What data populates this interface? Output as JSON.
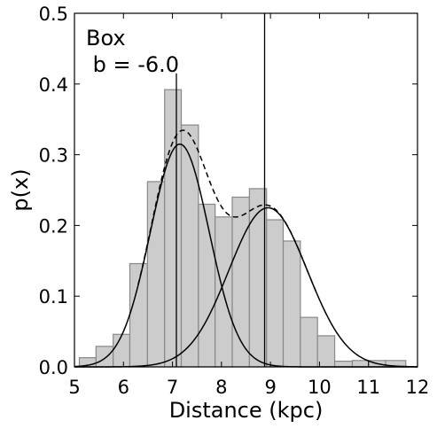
{
  "chart_data": {
    "type": "bar",
    "xlabel": "Distance (kpc)",
    "ylabel": "p(x)",
    "xlim": [
      5,
      12
    ],
    "ylim": [
      0,
      0.5
    ],
    "xticks": [
      "5",
      "6",
      "7",
      "8",
      "9",
      "10",
      "11",
      "12"
    ],
    "yticks": [
      "0.0",
      "0.1",
      "0.2",
      "0.3",
      "0.4",
      "0.5"
    ],
    "annotation": {
      "line1": "Box",
      "line2": " b = -6.0"
    },
    "histogram": {
      "bin_edges": [
        5.1,
        5.44,
        5.79,
        6.13,
        6.49,
        6.84,
        7.18,
        7.53,
        7.87,
        8.22,
        8.57,
        8.92,
        9.26,
        9.61,
        9.96,
        10.31,
        10.67,
        11.0,
        11.35,
        11.76
      ],
      "values": [
        0.013,
        0.029,
        0.046,
        0.146,
        0.262,
        0.392,
        0.342,
        0.23,
        0.212,
        0.24,
        0.252,
        0.208,
        0.178,
        0.07,
        0.044,
        0.008,
        0.009,
        0.009,
        0.009
      ]
    },
    "components": [
      {
        "mean": 7.15,
        "sigma": 0.6,
        "amplitude": 0.315
      },
      {
        "mean": 8.95,
        "sigma": 0.8,
        "amplitude": 0.225
      }
    ],
    "vlines": [
      7.08,
      8.88
    ]
  }
}
